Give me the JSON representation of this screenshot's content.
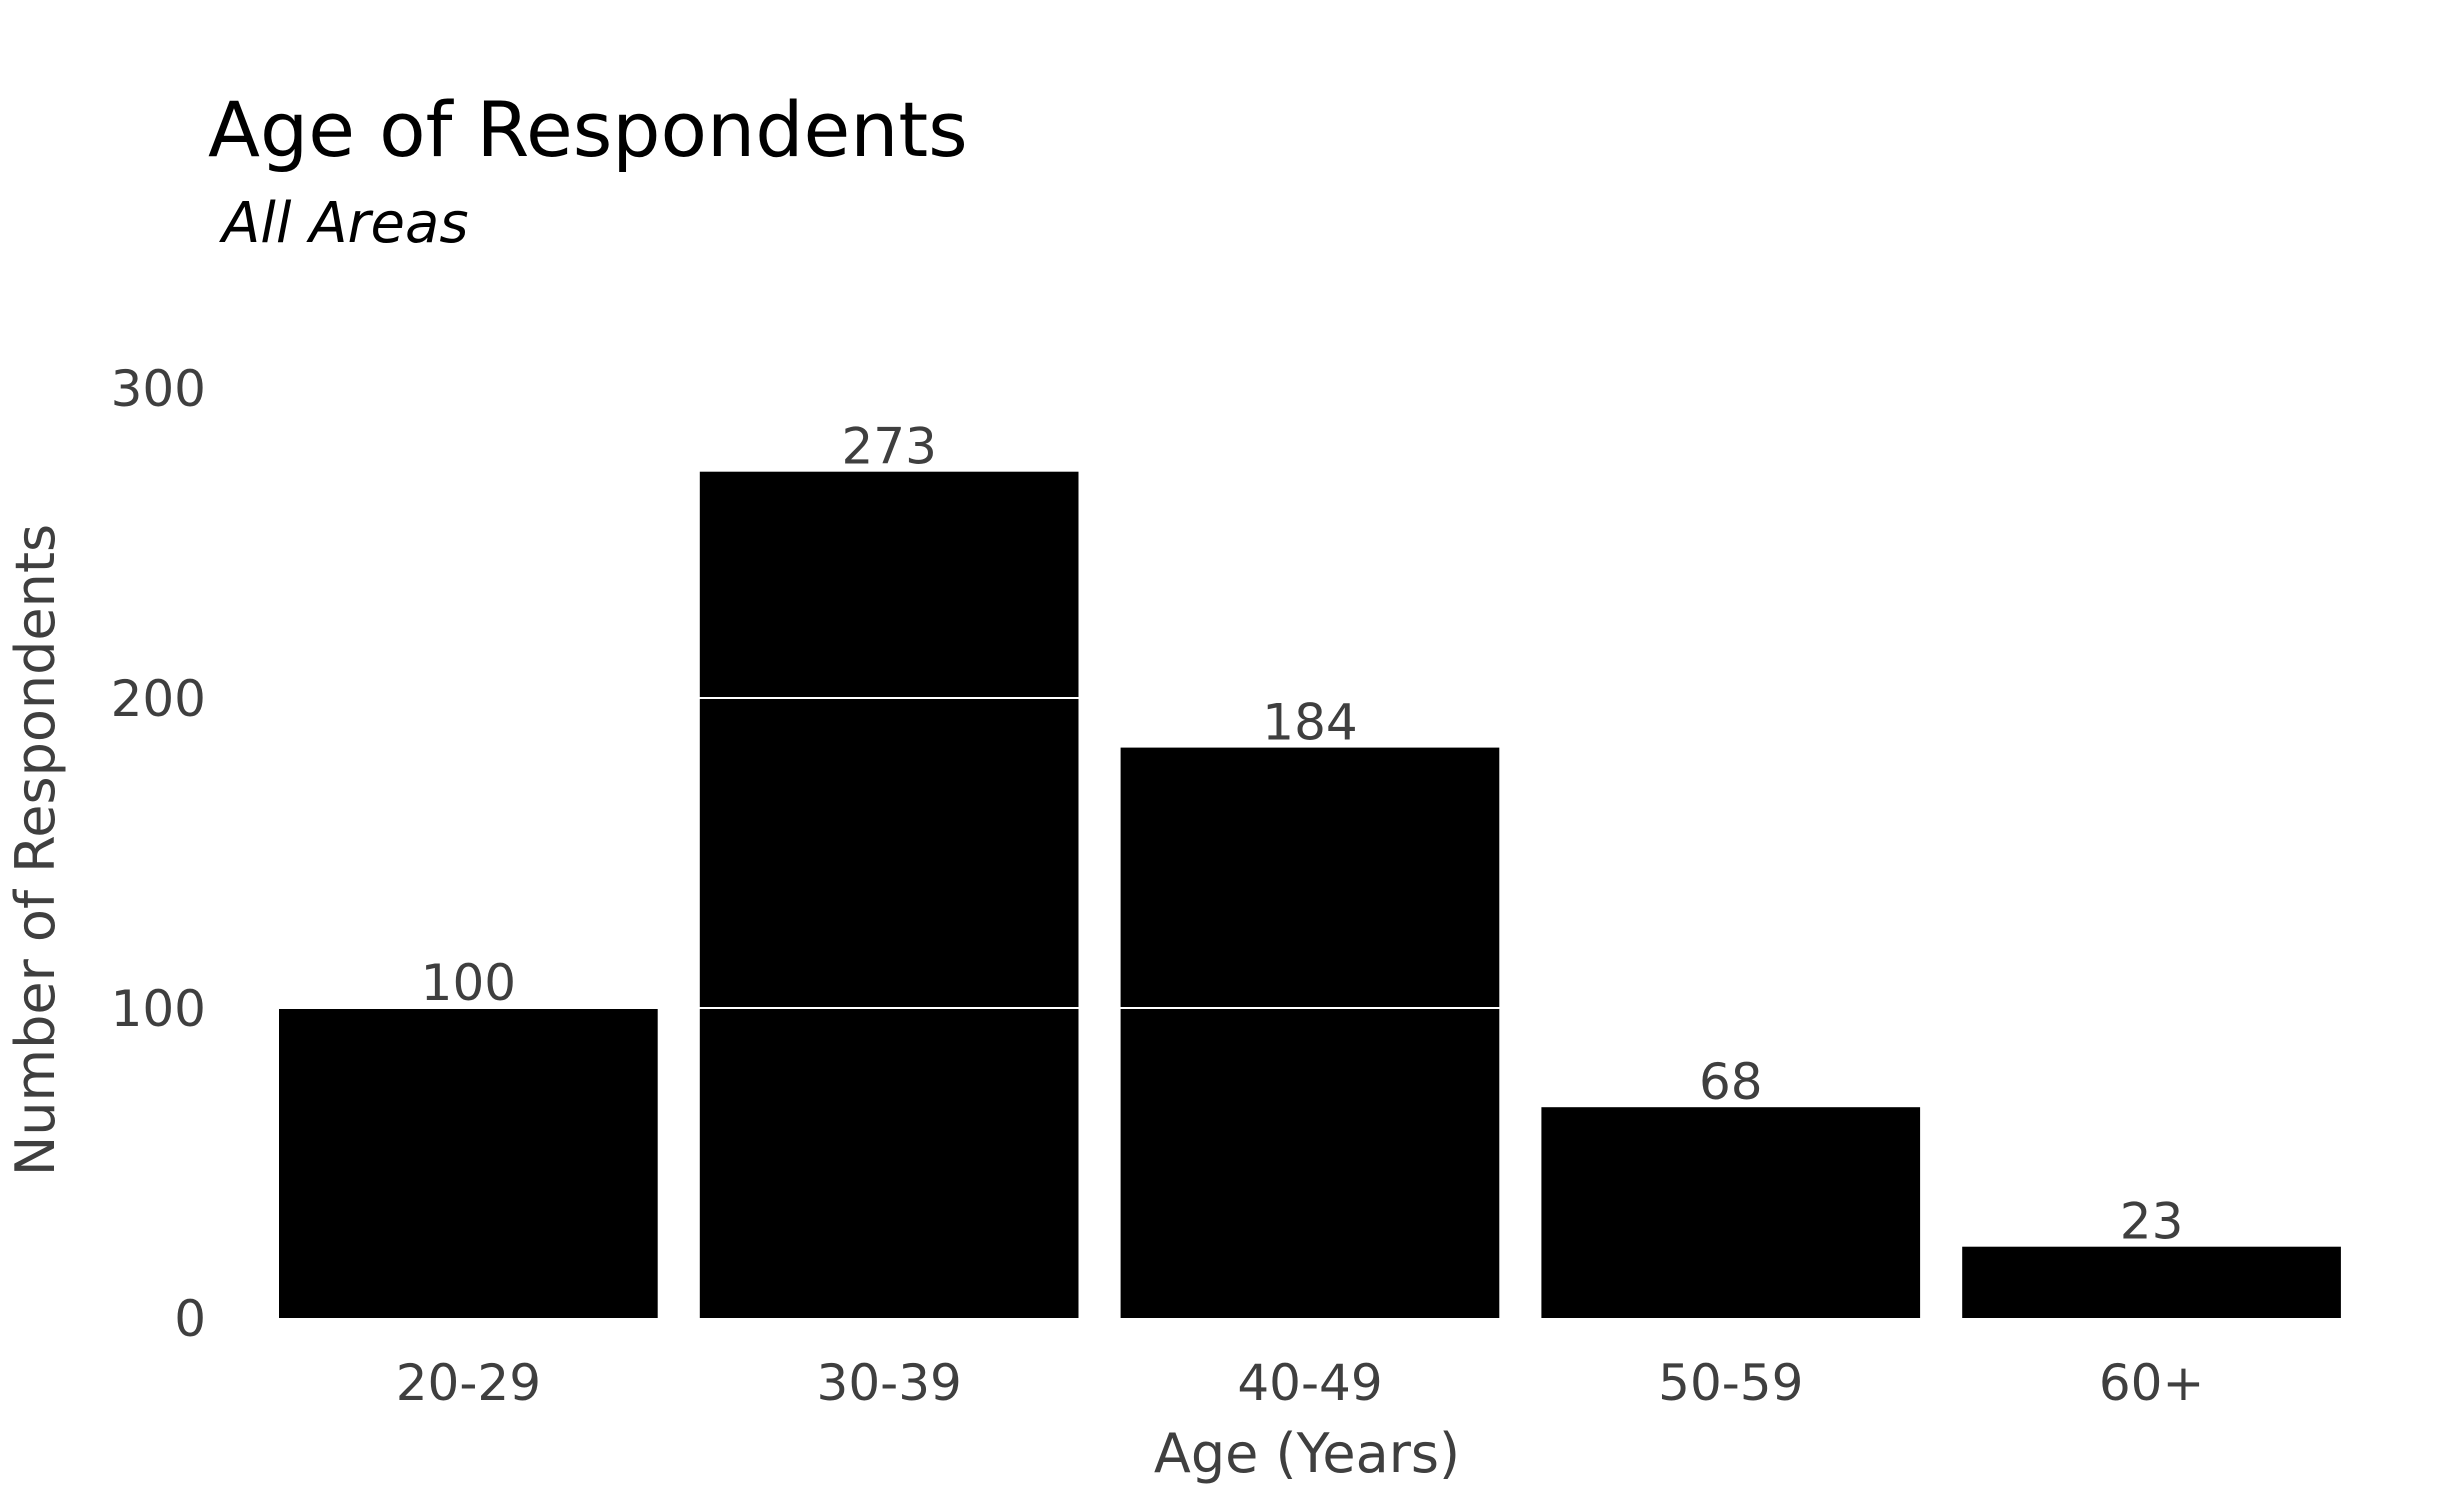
{
  "chart_data": {
    "type": "bar",
    "title": "Age of Respondents",
    "subtitle": "All Areas",
    "xlabel": "Age (Years)",
    "ylabel": "Number of Respondents",
    "categories": [
      "20-29",
      "30-39",
      "40-49",
      "50-59",
      "60+"
    ],
    "values": [
      100,
      273,
      184,
      68,
      23
    ],
    "data_labels": [
      "100",
      "273",
      "184",
      "68",
      "23"
    ],
    "ylim": [
      0,
      300
    ],
    "yticks": [
      0,
      100,
      200,
      300
    ],
    "ytick_labels": [
      "0",
      "100",
      "200",
      "300"
    ],
    "grid": true,
    "grid_color": "#ffffff",
    "bar_color": "#000000",
    "background": "#ffffff",
    "legend": "none"
  }
}
